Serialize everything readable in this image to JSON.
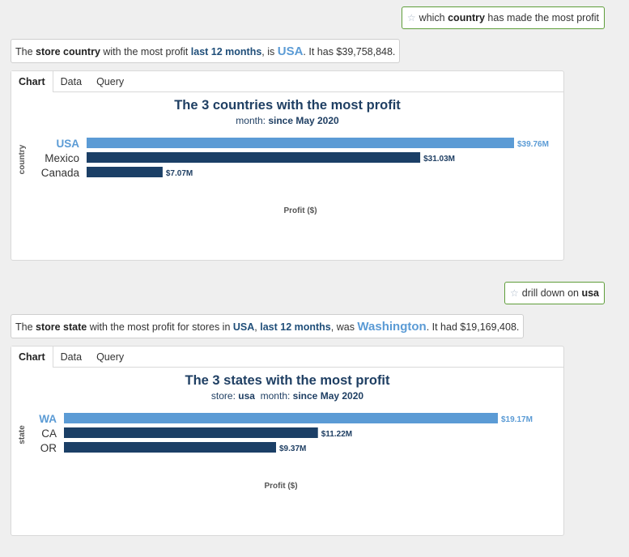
{
  "conversation": [
    {
      "query": {
        "before": "which ",
        "bold": "country",
        "after": " has made the most profit"
      },
      "answer": {
        "p1": "The ",
        "b1": "store country",
        "p2": " with the most profit ",
        "b2": "last 12 months",
        "p3": ", is ",
        "big": "USA",
        "p4": ". It has $39,758,848."
      },
      "tabs": [
        "Chart",
        "Data",
        "Query"
      ],
      "chart_data": {
        "type": "bar",
        "orientation": "horizontal",
        "title": "The 3 countries with the most profit",
        "subtitle": [
          {
            "label": "month: ",
            "value": "since May 2020"
          }
        ],
        "ylabel": "country",
        "xlabel": "Profit ($)",
        "categories": [
          "USA",
          "Mexico",
          "Canada"
        ],
        "values": [
          39758848,
          31030000,
          7070000
        ],
        "data_labels": [
          "$39.76M",
          "$31.03M",
          "$7.07M"
        ],
        "xlim": [
          0,
          39758848
        ],
        "highlight_index": 0,
        "colors": {
          "highlight": "#5b9bd5",
          "normal": "#1b3f66",
          "highlight_label": "#5b9bd5",
          "normal_label": "#1f3f63"
        }
      }
    },
    {
      "query": {
        "before": "drill down on ",
        "bold": "usa",
        "after": ""
      },
      "answer": {
        "p1": "The ",
        "b1": "store state",
        "p2": " with the most profit for stores in ",
        "b2": "USA",
        "p3": ", ",
        "b3": "last 12 months",
        "p4": ", was ",
        "big": "Washington",
        "p5": ". It had $19,169,408."
      },
      "tabs": [
        "Chart",
        "Data",
        "Query"
      ],
      "chart_data": {
        "type": "bar",
        "orientation": "horizontal",
        "title": "The 3 states with the most profit",
        "subtitle": [
          {
            "label": "store: ",
            "value": "usa"
          },
          {
            "label": "month: ",
            "value": "since May 2020"
          }
        ],
        "ylabel": "state",
        "xlabel": "Profit ($)",
        "categories": [
          "WA",
          "CA",
          "OR"
        ],
        "values": [
          19169408,
          11220000,
          9370000
        ],
        "data_labels": [
          "$19.17M",
          "$11.22M",
          "$9.37M"
        ],
        "xlim": [
          0,
          19169408
        ],
        "highlight_index": 0,
        "colors": {
          "highlight": "#5b9bd5",
          "normal": "#1b3f66",
          "highlight_label": "#5b9bd5",
          "normal_label": "#1f3f63"
        }
      }
    }
  ]
}
